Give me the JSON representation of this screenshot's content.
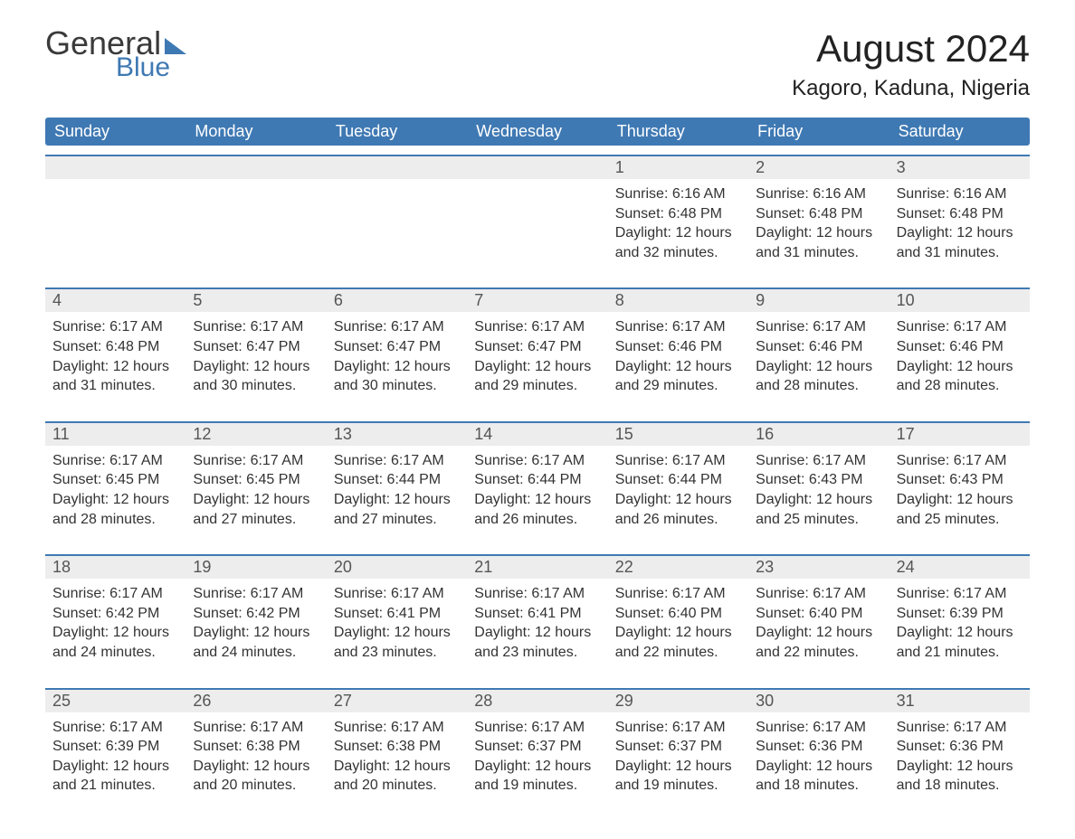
{
  "logo": {
    "text1": "General",
    "text2": "Blue"
  },
  "title": {
    "month": "August 2024",
    "location": "Kagoro, Kaduna, Nigeria"
  },
  "colors": {
    "brand_blue": "#3f79b3",
    "header_bg": "#3f79b3",
    "daynum_bg": "#ededed",
    "text": "#333333",
    "background": "#ffffff"
  },
  "dow": [
    "Sunday",
    "Monday",
    "Tuesday",
    "Wednesday",
    "Thursday",
    "Friday",
    "Saturday"
  ],
  "weeks": [
    [
      null,
      null,
      null,
      null,
      {
        "n": "1",
        "sr": "6:16 AM",
        "ss": "6:48 PM",
        "dh": "12",
        "dm": "32"
      },
      {
        "n": "2",
        "sr": "6:16 AM",
        "ss": "6:48 PM",
        "dh": "12",
        "dm": "31"
      },
      {
        "n": "3",
        "sr": "6:16 AM",
        "ss": "6:48 PM",
        "dh": "12",
        "dm": "31"
      }
    ],
    [
      {
        "n": "4",
        "sr": "6:17 AM",
        "ss": "6:48 PM",
        "dh": "12",
        "dm": "31"
      },
      {
        "n": "5",
        "sr": "6:17 AM",
        "ss": "6:47 PM",
        "dh": "12",
        "dm": "30"
      },
      {
        "n": "6",
        "sr": "6:17 AM",
        "ss": "6:47 PM",
        "dh": "12",
        "dm": "30"
      },
      {
        "n": "7",
        "sr": "6:17 AM",
        "ss": "6:47 PM",
        "dh": "12",
        "dm": "29"
      },
      {
        "n": "8",
        "sr": "6:17 AM",
        "ss": "6:46 PM",
        "dh": "12",
        "dm": "29"
      },
      {
        "n": "9",
        "sr": "6:17 AM",
        "ss": "6:46 PM",
        "dh": "12",
        "dm": "28"
      },
      {
        "n": "10",
        "sr": "6:17 AM",
        "ss": "6:46 PM",
        "dh": "12",
        "dm": "28"
      }
    ],
    [
      {
        "n": "11",
        "sr": "6:17 AM",
        "ss": "6:45 PM",
        "dh": "12",
        "dm": "28"
      },
      {
        "n": "12",
        "sr": "6:17 AM",
        "ss": "6:45 PM",
        "dh": "12",
        "dm": "27"
      },
      {
        "n": "13",
        "sr": "6:17 AM",
        "ss": "6:44 PM",
        "dh": "12",
        "dm": "27"
      },
      {
        "n": "14",
        "sr": "6:17 AM",
        "ss": "6:44 PM",
        "dh": "12",
        "dm": "26"
      },
      {
        "n": "15",
        "sr": "6:17 AM",
        "ss": "6:44 PM",
        "dh": "12",
        "dm": "26"
      },
      {
        "n": "16",
        "sr": "6:17 AM",
        "ss": "6:43 PM",
        "dh": "12",
        "dm": "25"
      },
      {
        "n": "17",
        "sr": "6:17 AM",
        "ss": "6:43 PM",
        "dh": "12",
        "dm": "25"
      }
    ],
    [
      {
        "n": "18",
        "sr": "6:17 AM",
        "ss": "6:42 PM",
        "dh": "12",
        "dm": "24"
      },
      {
        "n": "19",
        "sr": "6:17 AM",
        "ss": "6:42 PM",
        "dh": "12",
        "dm": "24"
      },
      {
        "n": "20",
        "sr": "6:17 AM",
        "ss": "6:41 PM",
        "dh": "12",
        "dm": "23"
      },
      {
        "n": "21",
        "sr": "6:17 AM",
        "ss": "6:41 PM",
        "dh": "12",
        "dm": "23"
      },
      {
        "n": "22",
        "sr": "6:17 AM",
        "ss": "6:40 PM",
        "dh": "12",
        "dm": "22"
      },
      {
        "n": "23",
        "sr": "6:17 AM",
        "ss": "6:40 PM",
        "dh": "12",
        "dm": "22"
      },
      {
        "n": "24",
        "sr": "6:17 AM",
        "ss": "6:39 PM",
        "dh": "12",
        "dm": "21"
      }
    ],
    [
      {
        "n": "25",
        "sr": "6:17 AM",
        "ss": "6:39 PM",
        "dh": "12",
        "dm": "21"
      },
      {
        "n": "26",
        "sr": "6:17 AM",
        "ss": "6:38 PM",
        "dh": "12",
        "dm": "20"
      },
      {
        "n": "27",
        "sr": "6:17 AM",
        "ss": "6:38 PM",
        "dh": "12",
        "dm": "20"
      },
      {
        "n": "28",
        "sr": "6:17 AM",
        "ss": "6:37 PM",
        "dh": "12",
        "dm": "19"
      },
      {
        "n": "29",
        "sr": "6:17 AM",
        "ss": "6:37 PM",
        "dh": "12",
        "dm": "19"
      },
      {
        "n": "30",
        "sr": "6:17 AM",
        "ss": "6:36 PM",
        "dh": "12",
        "dm": "18"
      },
      {
        "n": "31",
        "sr": "6:17 AM",
        "ss": "6:36 PM",
        "dh": "12",
        "dm": "18"
      }
    ]
  ],
  "labels": {
    "sunrise": "Sunrise:",
    "sunset": "Sunset:",
    "daylight": "Daylight:",
    "hours_word": "hours",
    "and_word": "and",
    "minutes_word": "minutes."
  },
  "typography": {
    "title_fontsize": 42,
    "location_fontsize": 24,
    "dow_fontsize": 18,
    "daynum_fontsize": 18,
    "cell_fontsize": 16
  }
}
